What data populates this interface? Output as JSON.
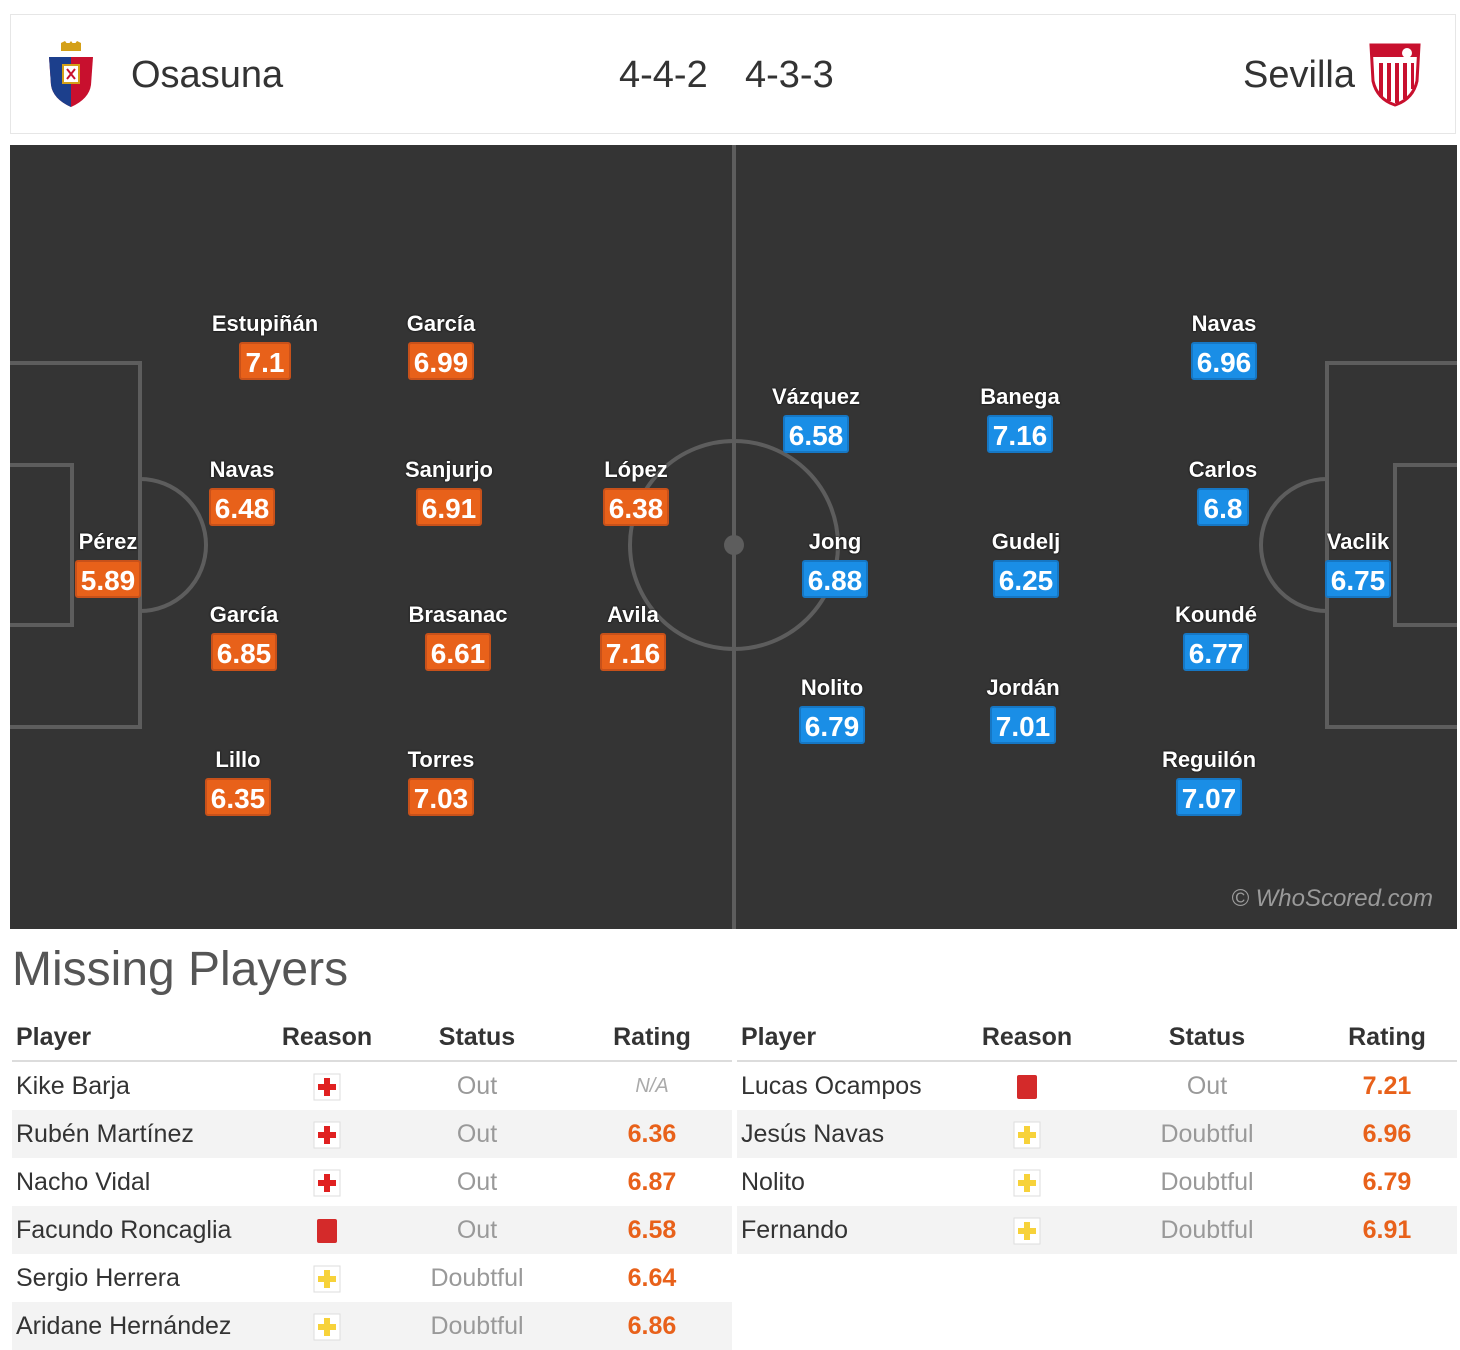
{
  "header": {
    "home_team": "Osasuna",
    "away_team": "Sevilla",
    "home_formation": "4-4-2",
    "away_formation": "4-3-3"
  },
  "pitch": {
    "watermark": "© WhoScored.com",
    "home_players": [
      {
        "name": "Pérez",
        "rating": "5.89"
      },
      {
        "name": "Estupiñán",
        "rating": "7.1"
      },
      {
        "name": "Navas",
        "rating": "6.48"
      },
      {
        "name": "García",
        "rating": "6.85"
      },
      {
        "name": "Lillo",
        "rating": "6.35"
      },
      {
        "name": "García",
        "rating": "6.99"
      },
      {
        "name": "Sanjurjo",
        "rating": "6.91"
      },
      {
        "name": "Brasanac",
        "rating": "6.61"
      },
      {
        "name": "Torres",
        "rating": "7.03"
      },
      {
        "name": "López",
        "rating": "6.38"
      },
      {
        "name": "Avila",
        "rating": "7.16"
      }
    ],
    "away_players": [
      {
        "name": "Vaclik",
        "rating": "6.75"
      },
      {
        "name": "Navas",
        "rating": "6.96"
      },
      {
        "name": "Carlos",
        "rating": "6.8"
      },
      {
        "name": "Koundé",
        "rating": "6.77"
      },
      {
        "name": "Reguilón",
        "rating": "7.07"
      },
      {
        "name": "Banega",
        "rating": "7.16"
      },
      {
        "name": "Gudelj",
        "rating": "6.25"
      },
      {
        "name": "Jordán",
        "rating": "7.01"
      },
      {
        "name": "Vázquez",
        "rating": "6.58"
      },
      {
        "name": "Jong",
        "rating": "6.88"
      },
      {
        "name": "Nolito",
        "rating": "6.79"
      }
    ]
  },
  "missing": {
    "title": "Missing Players",
    "columns": {
      "player": "Player",
      "reason": "Reason",
      "status": "Status",
      "rating": "Rating"
    },
    "home": [
      {
        "player": "Kike Barja",
        "reason": "injury-icon",
        "status": "Out",
        "rating": "N/A"
      },
      {
        "player": "Rubén Martínez",
        "reason": "injury-icon",
        "status": "Out",
        "rating": "6.36"
      },
      {
        "player": "Nacho Vidal",
        "reason": "injury-icon",
        "status": "Out",
        "rating": "6.87"
      },
      {
        "player": "Facundo Roncaglia",
        "reason": "red-card-icon",
        "status": "Out",
        "rating": "6.58"
      },
      {
        "player": "Sergio Herrera",
        "reason": "doubtful-icon",
        "status": "Doubtful",
        "rating": "6.64"
      },
      {
        "player": "Aridane Hernández",
        "reason": "doubtful-icon",
        "status": "Doubtful",
        "rating": "6.86"
      }
    ],
    "away": [
      {
        "player": "Lucas Ocampos",
        "reason": "red-card-icon",
        "status": "Out",
        "rating": "7.21"
      },
      {
        "player": "Jesús Navas",
        "reason": "doubtful-icon",
        "status": "Doubtful",
        "rating": "6.96"
      },
      {
        "player": "Nolito",
        "reason": "doubtful-icon",
        "status": "Doubtful",
        "rating": "6.79"
      },
      {
        "player": "Fernando",
        "reason": "doubtful-icon",
        "status": "Doubtful",
        "rating": "6.91"
      }
    ]
  },
  "colors": {
    "home_rating": "#e8611a",
    "away_rating": "#1a8ee6",
    "pitch": "#343434",
    "injury": "#e02020",
    "red_card": "#d42a2a",
    "doubtful": "#f7d23a"
  }
}
